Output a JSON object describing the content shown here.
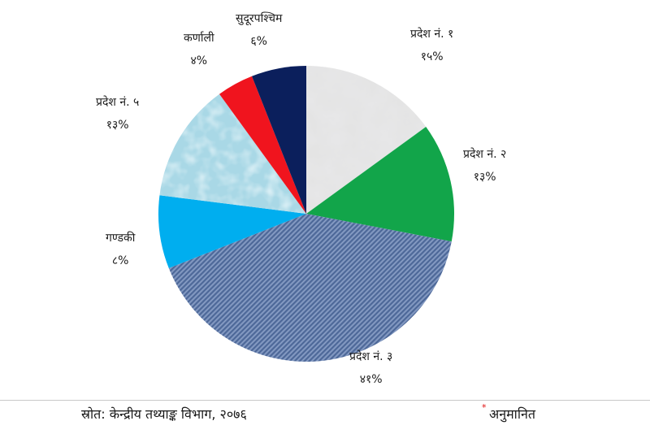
{
  "chart_data": {
    "type": "pie",
    "slices": [
      {
        "name": "प्रदेश नं. १",
        "value": 15,
        "label": "१५%",
        "color": "#d9d9d9",
        "fill": "granite"
      },
      {
        "name": "प्रदेश नं. २",
        "value": 13,
        "label": "१३%",
        "color": "#12a54a",
        "fill": "solid"
      },
      {
        "name": "प्रदेश नं. ३",
        "value": 41,
        "label": "४१%",
        "color": "#5b79a8",
        "fill": "denim"
      },
      {
        "name": "गण्डकी",
        "value": 8,
        "label": "८%",
        "color": "#00aeef",
        "fill": "solid"
      },
      {
        "name": "प्रदेश नं. ५",
        "value": 13,
        "label": "१३%",
        "color": "#b9e0ea",
        "fill": "water"
      },
      {
        "name": "कर्णाली",
        "value": 4,
        "label": "४%",
        "color": "#f0141e",
        "fill": "solid"
      },
      {
        "name": "सुदूरपश्चिम",
        "value": 6,
        "label": "६%",
        "color": "#0b1f5c",
        "fill": "solid"
      }
    ]
  },
  "footer": {
    "source": "स्रोत: केन्द्रीय तथ्याङ्क विभाग, २०७६",
    "note_mark": "*",
    "note": "अनुमानित"
  }
}
